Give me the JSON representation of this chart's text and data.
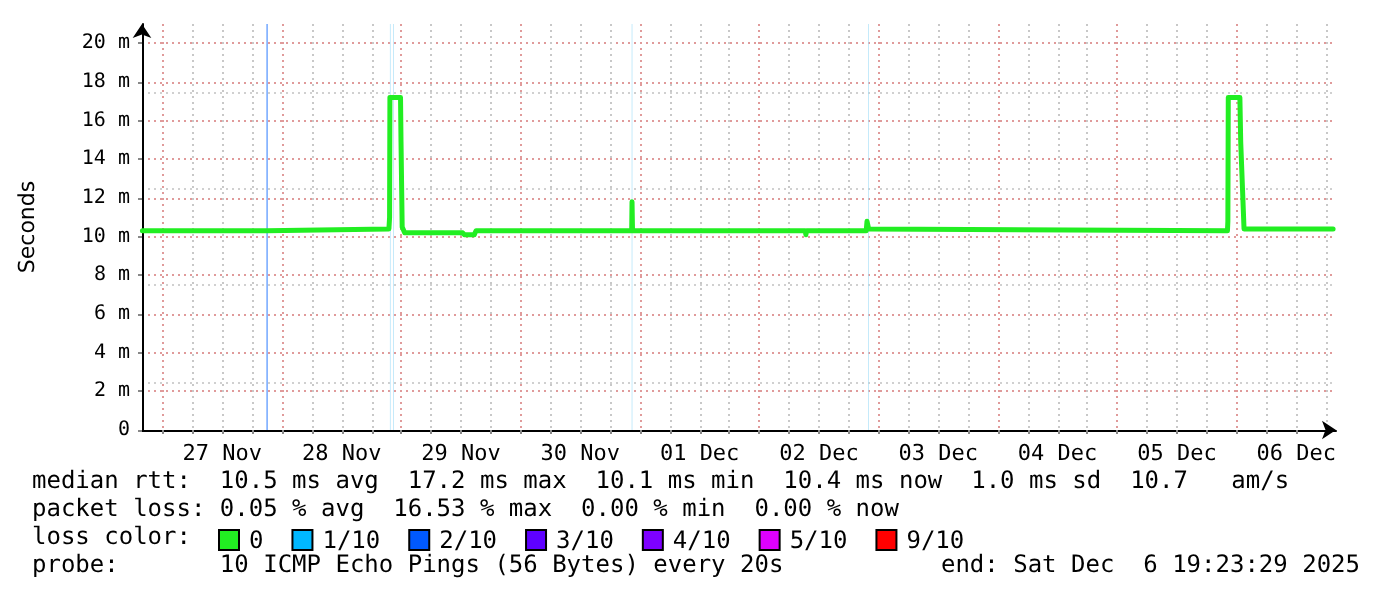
{
  "chart_data": {
    "type": "line",
    "ylabel": "Seconds",
    "legend_title": "loss color:",
    "legend": "bottom",
    "grid": true,
    "marker": "none",
    "line_style": "solid",
    "xlim": [
      "2025-11-26T19:50",
      "2025-12-06T20:00"
    ],
    "ylim": [
      0,
      21
    ],
    "yticks": [
      0,
      {
        "value": 2,
        "label": "2 m"
      },
      {
        "value": 4,
        "label": "4 m"
      },
      {
        "value": 6,
        "label": "6 m"
      },
      {
        "value": 8,
        "label": "8 m"
      },
      {
        "value": 10,
        "label": "10 m"
      },
      {
        "value": 12,
        "label": "12 m"
      },
      {
        "value": 14,
        "label": "14 m"
      },
      {
        "value": 16,
        "label": "16 m"
      },
      {
        "value": 18,
        "label": "18 m"
      },
      {
        "value": 20,
        "label": "20 m"
      }
    ],
    "xticks": [
      {
        "value": "2025-11-27T00:00",
        "label": null
      },
      {
        "value": "2025-11-27T06:00",
        "label": null
      },
      {
        "value": "2025-11-27T12:00",
        "label": "27 Nov"
      },
      {
        "value": "2025-11-27T18:00",
        "label": null
      },
      {
        "value": "2025-11-28T00:00",
        "label": null
      },
      {
        "value": "2025-11-28T06:00",
        "label": null
      },
      {
        "value": "2025-11-28T12:00",
        "label": "28 Nov"
      },
      {
        "value": "2025-11-28T18:00",
        "label": null
      },
      {
        "value": "2025-11-29T00:00",
        "label": null
      },
      {
        "value": "2025-11-29T06:00",
        "label": null
      },
      {
        "value": "2025-11-29T12:00",
        "label": "29 Nov"
      },
      {
        "value": "2025-11-29T18:00",
        "label": null
      },
      {
        "value": "2025-11-30T00:00",
        "label": null
      },
      {
        "value": "2025-11-30T06:00",
        "label": null
      },
      {
        "value": "2025-11-30T12:00",
        "label": "30 Nov"
      },
      {
        "value": "2025-11-30T18:00",
        "label": null
      },
      {
        "value": "2025-12-01T00:00",
        "label": null
      },
      {
        "value": "2025-12-01T06:00",
        "label": null
      },
      {
        "value": "2025-12-01T12:00",
        "label": "01 Dec"
      },
      {
        "value": "2025-12-01T18:00",
        "label": null
      },
      {
        "value": "2025-12-02T00:00",
        "label": null
      },
      {
        "value": "2025-12-02T06:00",
        "label": null
      },
      {
        "value": "2025-12-02T12:00",
        "label": "02 Dec"
      },
      {
        "value": "2025-12-02T18:00",
        "label": null
      },
      {
        "value": "2025-12-03T00:00",
        "label": null
      },
      {
        "value": "2025-12-03T06:00",
        "label": null
      },
      {
        "value": "2025-12-03T12:00",
        "label": "03 Dec"
      },
      {
        "value": "2025-12-03T18:00",
        "label": null
      },
      {
        "value": "2025-12-04T00:00",
        "label": null
      },
      {
        "value": "2025-12-04T06:00",
        "label": null
      },
      {
        "value": "2025-12-04T12:00",
        "label": "04 Dec"
      },
      {
        "value": "2025-12-04T18:00",
        "label": null
      },
      {
        "value": "2025-12-05T00:00",
        "label": null
      },
      {
        "value": "2025-12-05T06:00",
        "label": null
      },
      {
        "value": "2025-12-05T12:00",
        "label": "05 Dec"
      },
      {
        "value": "2025-12-05T18:00",
        "label": null
      },
      {
        "value": "2025-12-06T00:00",
        "label": null
      },
      {
        "value": "2025-12-06T06:00",
        "label": null
      },
      {
        "value": "2025-12-06T12:00",
        "label": "06 Dec"
      },
      {
        "value": "2025-12-06T18:00",
        "label": null
      }
    ],
    "series": [
      {
        "name": "0",
        "color": "#22ee22",
        "x": [
          "2025-11-26T19:55",
          "2025-11-27T20:57",
          "2025-11-28T21:30",
          "2025-11-28T21:38",
          "2025-11-28T21:42",
          "2025-11-28T23:50",
          "2025-11-28T23:56",
          "2025-11-29T00:10",
          "2025-11-29T00:40",
          "2025-11-29T12:20",
          "2025-11-29T12:40",
          "2025-11-29T14:40",
          "2025-11-29T15:00",
          "2025-11-30T22:20",
          "2025-11-30T22:24",
          "2025-11-30T22:30",
          "2025-12-02T09:15",
          "2025-12-02T09:22",
          "2025-12-02T09:30",
          "2025-12-02T21:30",
          "2025-12-02T21:40",
          "2025-12-02T22:00",
          "2025-12-05T22:10",
          "2025-12-05T22:15",
          "2025-12-05T22:20",
          "2025-12-06T00:40",
          "2025-12-06T00:50",
          "2025-12-06T01:30",
          "2025-12-06T19:25"
        ],
        "values": [
          10.3,
          10.3,
          10.4,
          11.0,
          17.2,
          17.2,
          14.9,
          10.5,
          10.2,
          10.2,
          10.1,
          10.1,
          10.3,
          10.3,
          11.8,
          10.3,
          10.3,
          10.1,
          10.3,
          10.3,
          10.8,
          10.4,
          10.3,
          10.8,
          17.2,
          17.2,
          14.9,
          10.4,
          10.4
        ]
      },
      {
        "name": "1/10",
        "color": "#00b8ff"
      },
      {
        "name": "2/10",
        "color": "#0059ff"
      },
      {
        "name": "3/10",
        "color": "#5e00ff"
      },
      {
        "name": "4/10",
        "color": "#7e00ff"
      },
      {
        "name": "5/10",
        "color": "#dd00ff"
      },
      {
        "name": "9/10",
        "color": "#ff0000"
      }
    ],
    "bands": [
      {
        "axis": "x",
        "from": "2025-11-27T20:50",
        "to": "2025-11-27T21:10",
        "color": "#80b0ff"
      },
      {
        "axis": "x",
        "from": "2025-11-28T21:42",
        "to": "2025-11-28T21:50",
        "color": "#a8e0f8"
      },
      {
        "axis": "x",
        "from": "2025-11-28T22:20",
        "to": "2025-11-28T22:28",
        "color": "#a8e0f8"
      },
      {
        "axis": "x",
        "from": "2025-11-30T22:20",
        "to": "2025-11-30T22:28",
        "color": "#a8e0f8"
      },
      {
        "axis": "x",
        "from": "2025-12-02T21:56",
        "to": "2025-12-02T22:04",
        "color": "#a8e0f8"
      }
    ],
    "annotations": [
      "median rtt:  10.5 ms avg  17.2 ms max  10.1 ms min  10.4 ms now  1.0 ms sd  10.7   am/s",
      "packet loss: 0.05 % avg  16.53 % max  0.00 % min  0.00 % now",
      "probe:       10 ICMP Echo Pings (56 Bytes) every 20s",
      "end: Sat Dec  6 19:23:29 2025"
    ]
  }
}
